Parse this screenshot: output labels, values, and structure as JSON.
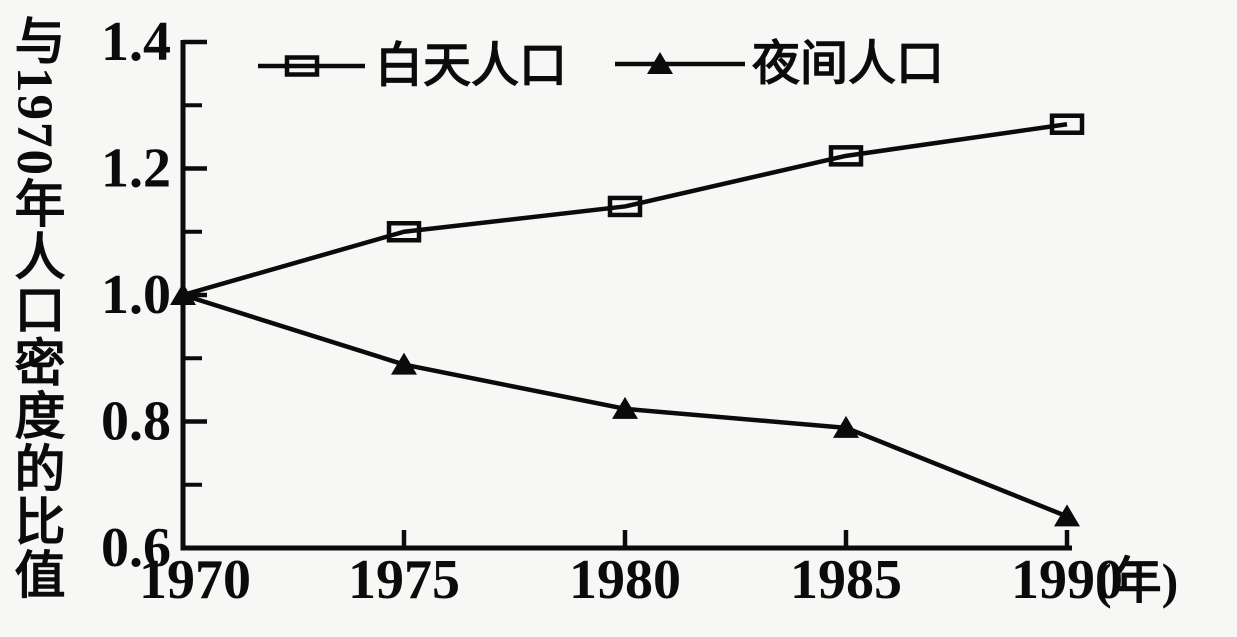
{
  "figure": {
    "background": "#f7f7f6",
    "ink": "#0b0b0b"
  },
  "chart_data": {
    "type": "line",
    "title": "",
    "ylabel": "与1970年人口密度的比值",
    "xlabel": "",
    "x_unit_label": "(年)",
    "x": [
      1970,
      1975,
      1980,
      1985,
      1990
    ],
    "x_tick_labels": [
      "1970",
      "1975",
      "1980",
      "1985",
      "1990"
    ],
    "y_tick_labels": [
      "0.6",
      "0.8",
      "1.0",
      "1.2",
      "1.4"
    ],
    "y_tick_values": [
      0.6,
      0.8,
      1.0,
      1.2,
      1.4
    ],
    "y_minor_ticks": [
      0.7,
      0.9,
      1.1,
      1.3
    ],
    "xlim": [
      1970,
      1990
    ],
    "ylim": [
      0.6,
      1.4
    ],
    "grid": false,
    "legend_position": "top-inside",
    "series": [
      {
        "name": "白天人口",
        "marker": "open-rect",
        "color": "#0b0b0b",
        "values": [
          1.0,
          1.1,
          1.14,
          1.22,
          1.27
        ]
      },
      {
        "name": "夜间人口",
        "marker": "filled-triangle",
        "color": "#0b0b0b",
        "values": [
          1.0,
          0.89,
          0.82,
          0.79,
          0.65
        ]
      }
    ]
  }
}
